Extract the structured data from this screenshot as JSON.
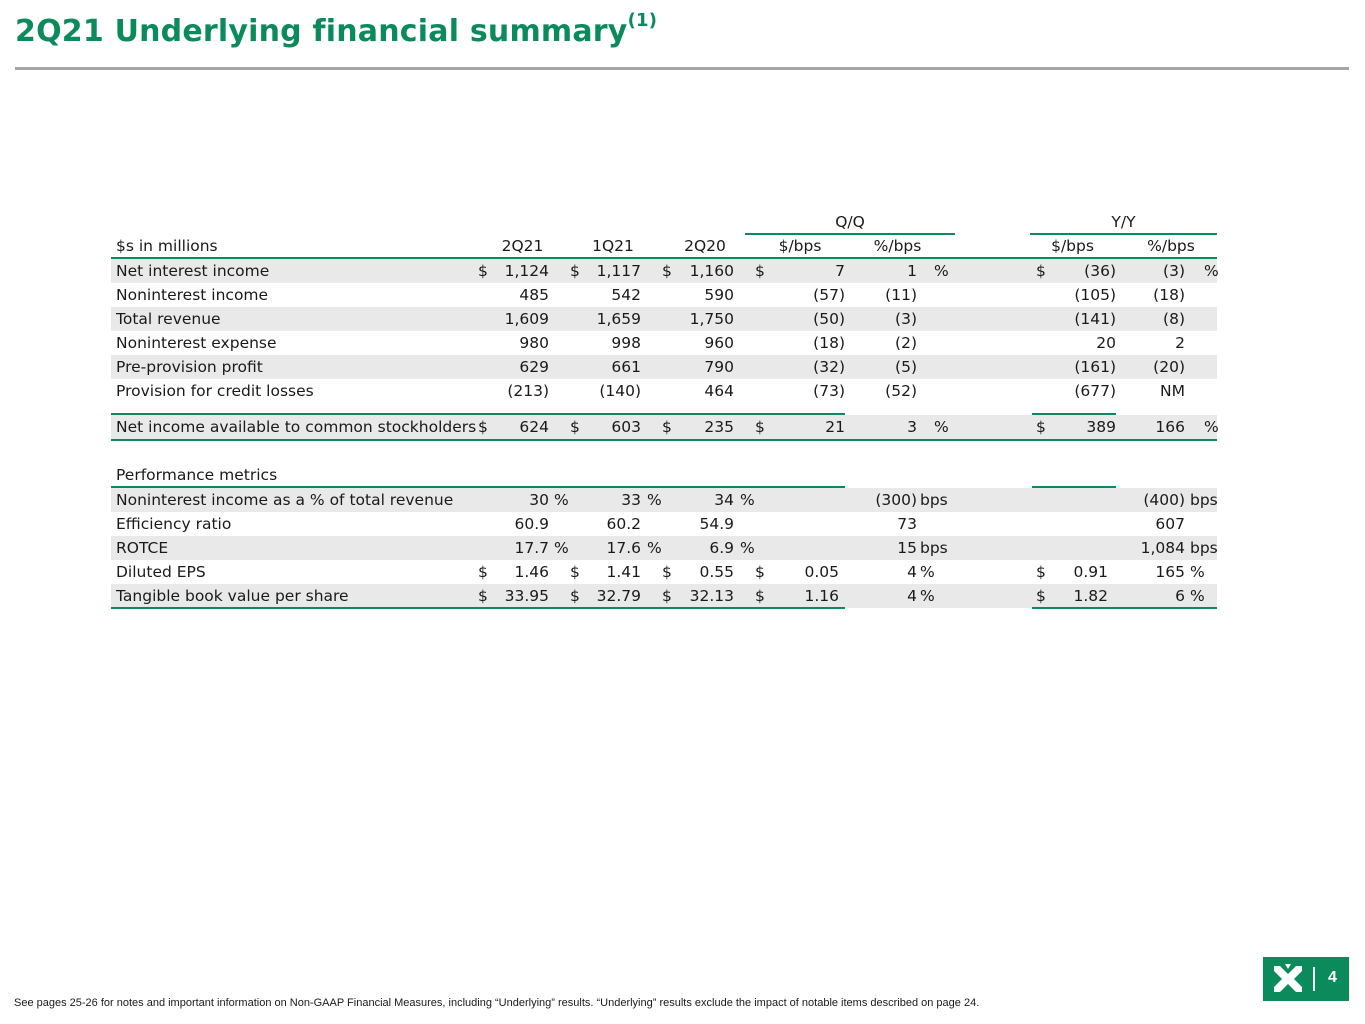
{
  "title": "2Q21 Underlying financial summary",
  "title_sup": "(1)",
  "groups": {
    "qq": "Q/Q",
    "yy": "Y/Y"
  },
  "header": {
    "label": "$s in millions",
    "c2q21": "2Q21",
    "c1q21": "1Q21",
    "c2q20": "2Q20",
    "qq_dollar": "$/bps",
    "qq_pct": "%/bps",
    "yy_dollar": "$/bps",
    "yy_pct": "%/bps"
  },
  "rows": [
    {
      "label": "Net interest income",
      "d1": "$",
      "v1": "1,124",
      "d2": "$",
      "v2": "1,117",
      "d3": "$",
      "v3": "1,160",
      "d4": "$",
      "v4": "7",
      "v5": "1",
      "u5": "%",
      "d6": "$",
      "v6": "(36)",
      "v7": "(3)",
      "u7": "%"
    },
    {
      "label": "Noninterest income",
      "d1": "",
      "v1": "485",
      "d2": "",
      "v2": "542",
      "d3": "",
      "v3": "590",
      "d4": "",
      "v4": "(57)",
      "v5": "(11)",
      "u5": "",
      "d6": "",
      "v6": "(105)",
      "v7": "(18)",
      "u7": ""
    },
    {
      "label": "Total revenue",
      "d1": "",
      "v1": "1,609",
      "d2": "",
      "v2": "1,659",
      "d3": "",
      "v3": "1,750",
      "d4": "",
      "v4": "(50)",
      "v5": "(3)",
      "u5": "",
      "d6": "",
      "v6": "(141)",
      "v7": "(8)",
      "u7": ""
    },
    {
      "label": "Noninterest expense",
      "d1": "",
      "v1": "980",
      "d2": "",
      "v2": "998",
      "d3": "",
      "v3": "960",
      "d4": "",
      "v4": "(18)",
      "v5": "(2)",
      "u5": "",
      "d6": "",
      "v6": "20",
      "v7": "2",
      "u7": ""
    },
    {
      "label": "Pre-provision profit",
      "d1": "",
      "v1": "629",
      "d2": "",
      "v2": "661",
      "d3": "",
      "v3": "790",
      "d4": "",
      "v4": "(32)",
      "v5": "(5)",
      "u5": "",
      "d6": "",
      "v6": "(161)",
      "v7": "(20)",
      "u7": ""
    },
    {
      "label": "Provision for credit losses",
      "d1": "",
      "v1": "(213)",
      "d2": "",
      "v2": "(140)",
      "d3": "",
      "v3": "464",
      "d4": "",
      "v4": "(73)",
      "v5": "(52)",
      "u5": "",
      "d6": "",
      "v6": "(677)",
      "v7": "NM",
      "u7": ""
    },
    {
      "label": "Net income available to common stockholders",
      "d1": "$",
      "v1": "624",
      "d2": "$",
      "v2": "603",
      "d3": "$",
      "v3": "235",
      "d4": "$",
      "v4": "21",
      "v5": "3",
      "u5": "%",
      "d6": "$",
      "v6": "389",
      "v7": "166",
      "u7": "%"
    }
  ],
  "metrics_heading": "Performance metrics",
  "metrics": [
    {
      "label": "Noninterest income as a % of total revenue",
      "d1": "",
      "v1": "30",
      "u1": "%",
      "d2": "",
      "v2": "33",
      "u2": "%",
      "d3": "",
      "v3": "34",
      "u3": "%",
      "d4": "",
      "v4": "",
      "v5": "(300)",
      "u5": "bps",
      "d6": "",
      "v6": "",
      "v7": "(400)",
      "u7": "bps"
    },
    {
      "label": "Efficiency ratio",
      "d1": "",
      "v1": "60.9",
      "u1": "",
      "d2": "",
      "v2": "60.2",
      "u2": "",
      "d3": "",
      "v3": "54.9",
      "u3": "",
      "d4": "",
      "v4": "",
      "v5": "73",
      "u5": "",
      "d6": "",
      "v6": "",
      "v7": "607",
      "u7": ""
    },
    {
      "label": "ROTCE",
      "d1": "",
      "v1": "17.7",
      "u1": "%",
      "d2": "",
      "v2": "17.6",
      "u2": "%",
      "d3": "",
      "v3": "6.9",
      "u3": "%",
      "d4": "",
      "v4": "",
      "v5": "15",
      "u5": "bps",
      "d6": "",
      "v6": "",
      "v7": "1,084",
      "u7": "bps"
    },
    {
      "label": "Diluted EPS",
      "d1": "$",
      "v1": "1.46",
      "u1": "",
      "d2": "$",
      "v2": "1.41",
      "u2": "",
      "d3": "$",
      "v3": "0.55",
      "u3": "",
      "d4": "$",
      "v4": "0.05",
      "v5": "4",
      "u5": "%",
      "d6": "$",
      "v6": "0.91",
      "v7": "165",
      "u7": "%"
    },
    {
      "label": "Tangible book value per share",
      "d1": "$",
      "v1": "33.95",
      "u1": "",
      "d2": "$",
      "v2": "32.79",
      "u2": "",
      "d3": "$",
      "v3": "32.13",
      "u3": "",
      "d4": "$",
      "v4": "1.16",
      "v5": "4",
      "u5": "%",
      "d6": "$",
      "v6": "1.82",
      "v7": "6",
      "u7": "%"
    }
  ],
  "footnote": "See pages 25-26 for notes and important information on Non-GAAP Financial Measures, including “Underlying” results. “Underlying” results exclude the impact of notable items described on page 24.",
  "page_number": "4",
  "colors": {
    "accent": "#0b8a5c",
    "row_shade": "#e9e9e9",
    "rule": "#a6a6a6"
  }
}
